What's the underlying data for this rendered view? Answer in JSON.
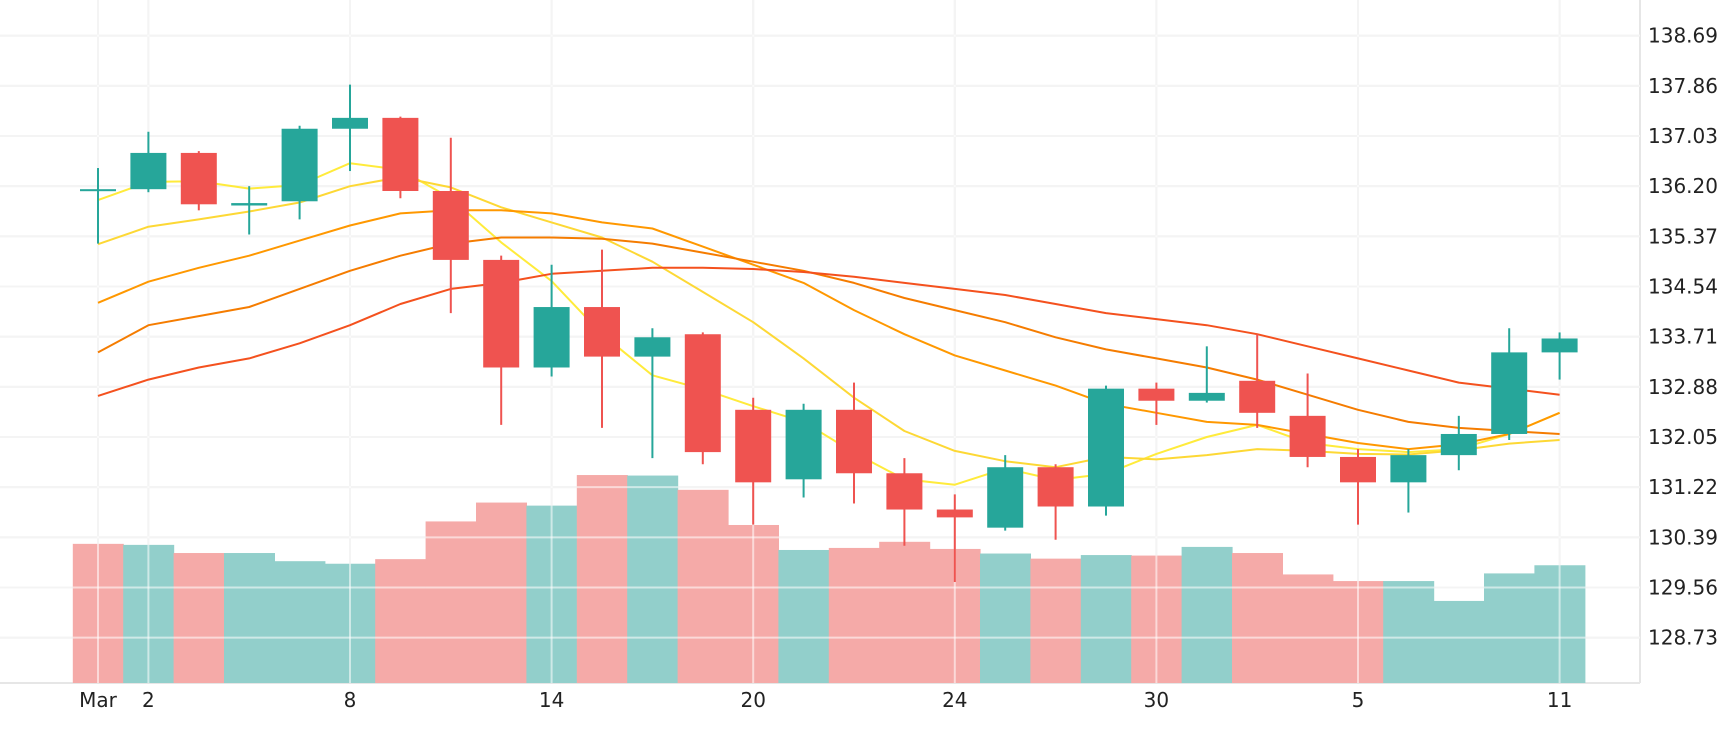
{
  "chart_data": {
    "type": "candlestick",
    "title": "",
    "xlabel": "",
    "ylabel": "",
    "ylim": [
      127.98,
      139.28
    ],
    "y_ticks": [
      "128.73",
      "129.56",
      "130.39",
      "131.22",
      "132.05",
      "132.88",
      "133.71",
      "134.54",
      "135.37",
      "136.20",
      "137.03",
      "137.86",
      "138.69"
    ],
    "x_ticks": [
      {
        "label": "Mar",
        "index": 0
      },
      {
        "label": "2",
        "index": 1
      },
      {
        "label": "8",
        "index": 5
      },
      {
        "label": "14",
        "index": 9
      },
      {
        "label": "20",
        "index": 13
      },
      {
        "label": "24",
        "index": 17
      },
      {
        "label": "30",
        "index": 21
      },
      {
        "label": "5",
        "index": 25
      },
      {
        "label": "11",
        "index": 29
      }
    ],
    "grid": true,
    "legend": "none",
    "colors": {
      "up": "#26a69a",
      "down": "#ef5350",
      "volume_up": "#92cfcb",
      "volume_down": "#f5aaa8",
      "grid": "#e6e6e6"
    },
    "candles": [
      {
        "open": 136.15,
        "high": 136.5,
        "low": 135.25,
        "close": 136.15
      },
      {
        "open": 136.15,
        "high": 137.1,
        "low": 136.1,
        "close": 136.75
      },
      {
        "open": 136.75,
        "high": 136.78,
        "low": 135.8,
        "close": 135.9
      },
      {
        "open": 135.88,
        "high": 136.2,
        "low": 135.4,
        "close": 135.92
      },
      {
        "open": 135.95,
        "high": 137.2,
        "low": 135.65,
        "close": 137.15
      },
      {
        "open": 137.15,
        "high": 137.88,
        "low": 136.45,
        "close": 137.33
      },
      {
        "open": 137.33,
        "high": 137.35,
        "low": 136.0,
        "close": 136.12
      },
      {
        "open": 136.12,
        "high": 137.0,
        "low": 134.1,
        "close": 134.98
      },
      {
        "open": 134.98,
        "high": 135.05,
        "low": 132.25,
        "close": 133.2
      },
      {
        "open": 133.2,
        "high": 134.9,
        "low": 133.05,
        "close": 134.2
      },
      {
        "open": 134.2,
        "high": 135.15,
        "low": 132.2,
        "close": 133.38
      },
      {
        "open": 133.38,
        "high": 133.85,
        "low": 131.7,
        "close": 133.7
      },
      {
        "open": 133.75,
        "high": 133.78,
        "low": 131.6,
        "close": 131.8
      },
      {
        "open": 132.5,
        "high": 132.7,
        "low": 130.6,
        "close": 131.3
      },
      {
        "open": 131.35,
        "high": 132.6,
        "low": 131.05,
        "close": 132.5
      },
      {
        "open": 132.5,
        "high": 132.95,
        "low": 130.95,
        "close": 131.45
      },
      {
        "open": 131.45,
        "high": 131.7,
        "low": 130.25,
        "close": 130.85
      },
      {
        "open": 130.85,
        "high": 131.1,
        "low": 129.65,
        "close": 130.72
      },
      {
        "open": 130.55,
        "high": 131.75,
        "low": 130.5,
        "close": 131.55
      },
      {
        "open": 131.55,
        "high": 131.6,
        "low": 130.35,
        "close": 130.9
      },
      {
        "open": 130.9,
        "high": 132.9,
        "low": 130.75,
        "close": 132.85
      },
      {
        "open": 132.85,
        "high": 132.95,
        "low": 132.25,
        "close": 132.65
      },
      {
        "open": 132.65,
        "high": 133.55,
        "low": 132.62,
        "close": 132.78
      },
      {
        "open": 132.98,
        "high": 133.75,
        "low": 132.2,
        "close": 132.45
      },
      {
        "open": 132.4,
        "high": 133.1,
        "low": 131.55,
        "close": 131.72
      },
      {
        "open": 131.72,
        "high": 131.85,
        "low": 130.6,
        "close": 131.3
      },
      {
        "open": 131.3,
        "high": 131.85,
        "low": 130.8,
        "close": 131.75
      },
      {
        "open": 131.75,
        "high": 132.4,
        "low": 131.5,
        "close": 132.1
      },
      {
        "open": 132.1,
        "high": 133.85,
        "low": 132.0,
        "close": 133.45
      },
      {
        "open": 133.45,
        "high": 133.78,
        "low": 133.0,
        "close": 133.68
      }
    ],
    "volume": [
      {
        "value": 2.73,
        "up": false
      },
      {
        "value": 2.71,
        "up": true
      },
      {
        "value": 2.55,
        "up": false
      },
      {
        "value": 2.55,
        "up": true
      },
      {
        "value": 2.39,
        "up": true
      },
      {
        "value": 2.34,
        "up": true
      },
      {
        "value": 2.43,
        "up": false
      },
      {
        "value": 3.17,
        "up": false
      },
      {
        "value": 3.54,
        "up": false
      },
      {
        "value": 3.48,
        "up": true
      },
      {
        "value": 4.08,
        "up": false
      },
      {
        "value": 4.07,
        "up": true
      },
      {
        "value": 3.79,
        "up": false
      },
      {
        "value": 3.1,
        "up": false
      },
      {
        "value": 2.61,
        "up": true
      },
      {
        "value": 2.65,
        "up": false
      },
      {
        "value": 2.77,
        "up": false
      },
      {
        "value": 2.63,
        "up": false
      },
      {
        "value": 2.54,
        "up": true
      },
      {
        "value": 2.44,
        "up": false
      },
      {
        "value": 2.51,
        "up": true
      },
      {
        "value": 2.5,
        "up": false
      },
      {
        "value": 2.67,
        "up": true
      },
      {
        "value": 2.55,
        "up": false
      },
      {
        "value": 2.13,
        "up": false
      },
      {
        "value": 2.0,
        "up": false
      },
      {
        "value": 2.0,
        "up": true
      },
      {
        "value": 1.61,
        "up": true
      },
      {
        "value": 2.15,
        "up": true
      },
      {
        "value": 2.31,
        "up": true
      }
    ],
    "volume_max": 13.4,
    "moving_averages": [
      {
        "color": "#ffeb3b",
        "values": [
          135.97,
          136.27,
          136.28,
          136.16,
          136.22,
          136.58,
          136.47,
          136.0,
          135.27,
          134.63,
          133.75,
          133.07,
          132.84,
          132.56,
          132.3,
          131.79,
          131.35,
          131.26,
          131.53,
          131.34,
          131.44,
          131.77,
          132.05,
          132.25,
          131.95,
          131.85,
          131.8,
          131.85,
          132.1,
          132.45
        ]
      },
      {
        "color": "#fdd835",
        "values": [
          135.24,
          135.53,
          135.65,
          135.78,
          135.93,
          136.2,
          136.35,
          136.18,
          135.85,
          135.6,
          135.35,
          134.95,
          134.45,
          133.95,
          133.35,
          132.7,
          132.15,
          131.82,
          131.65,
          131.55,
          131.72,
          131.68,
          131.75,
          131.85,
          131.82,
          131.77,
          131.76,
          131.83,
          131.94,
          132.0
        ]
      },
      {
        "color": "#ff9800",
        "values": [
          134.27,
          134.62,
          134.85,
          135.05,
          135.3,
          135.55,
          135.75,
          135.8,
          135.8,
          135.75,
          135.6,
          135.5,
          135.2,
          134.9,
          134.6,
          134.15,
          133.75,
          133.4,
          133.15,
          132.9,
          132.6,
          132.45,
          132.3,
          132.25,
          132.1,
          131.95,
          131.85,
          131.93,
          132.1,
          132.45
        ]
      },
      {
        "color": "#f57c00",
        "values": [
          133.45,
          133.9,
          134.05,
          134.2,
          134.5,
          134.8,
          135.05,
          135.25,
          135.35,
          135.35,
          135.33,
          135.25,
          135.1,
          134.95,
          134.8,
          134.6,
          134.35,
          134.15,
          133.95,
          133.7,
          133.5,
          133.35,
          133.2,
          133.0,
          132.75,
          132.5,
          132.3,
          132.2,
          132.15,
          132.1
        ]
      },
      {
        "color": "#f4511e",
        "values": [
          132.73,
          133.0,
          133.2,
          133.35,
          133.6,
          133.9,
          134.25,
          134.5,
          134.6,
          134.75,
          134.8,
          134.85,
          134.85,
          134.83,
          134.78,
          134.7,
          134.6,
          134.5,
          134.4,
          134.25,
          134.1,
          134.0,
          133.9,
          133.75,
          133.55,
          133.35,
          133.15,
          132.95,
          132.85,
          132.75
        ]
      }
    ]
  }
}
